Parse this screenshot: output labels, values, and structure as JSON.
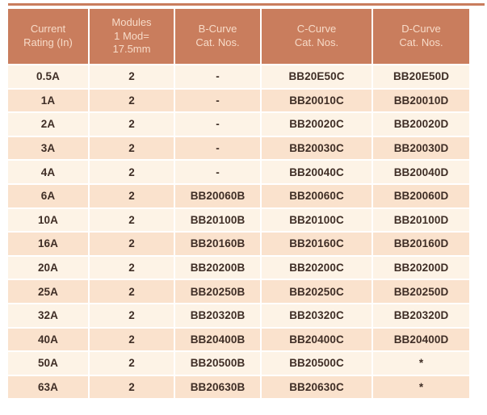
{
  "page": {
    "background": "#ffffff"
  },
  "colors": {
    "page_bg": "#ffffff",
    "top_rule": "#c97d5d",
    "header_bg": "#c97d5d",
    "header_text": "#f7dbc8",
    "row_light": "#fdf3e6",
    "row_dark": "#fae2cd",
    "cell_text": "#3f2e26",
    "separator": "#ffffff"
  },
  "table": {
    "columns": [
      {
        "id": "current_rating",
        "label": "Current\nRating (In)"
      },
      {
        "id": "modules",
        "label": "Modules\n1 Mod=\n17.5mm"
      },
      {
        "id": "b_curve",
        "label": "B-Curve\nCat. Nos."
      },
      {
        "id": "c_curve",
        "label": "C-Curve\nCat. Nos."
      },
      {
        "id": "d_curve",
        "label": "D-Curve\nCat. Nos."
      }
    ],
    "rows": [
      [
        "0.5A",
        "2",
        "-",
        "BB20E50C",
        "BB20E50D"
      ],
      [
        "1A",
        "2",
        "-",
        "BB20010C",
        "BB20010D"
      ],
      [
        "2A",
        "2",
        "-",
        "BB20020C",
        "BB20020D"
      ],
      [
        "3A",
        "2",
        "-",
        "BB20030C",
        "BB20030D"
      ],
      [
        "4A",
        "2",
        "-",
        "BB20040C",
        "BB20040D"
      ],
      [
        "6A",
        "2",
        "BB20060B",
        "BB20060C",
        "BB20060D"
      ],
      [
        "10A",
        "2",
        "BB20100B",
        "BB20100C",
        "BB20100D"
      ],
      [
        "16A",
        "2",
        "BB20160B",
        "BB20160C",
        "BB20160D"
      ],
      [
        "20A",
        "2",
        "BB20200B",
        "BB20200C",
        "BB20200D"
      ],
      [
        "25A",
        "2",
        "BB20250B",
        "BB20250C",
        "BB20250D"
      ],
      [
        "32A",
        "2",
        "BB20320B",
        "BB20320C",
        "BB20320D"
      ],
      [
        "40A",
        "2",
        "BB20400B",
        "BB20400C",
        "BB20400D"
      ],
      [
        "50A",
        "2",
        "BB20500B",
        "BB20500C",
        "*"
      ],
      [
        "63A",
        "2",
        "BB20630B",
        "BB20630C",
        "*"
      ]
    ]
  }
}
